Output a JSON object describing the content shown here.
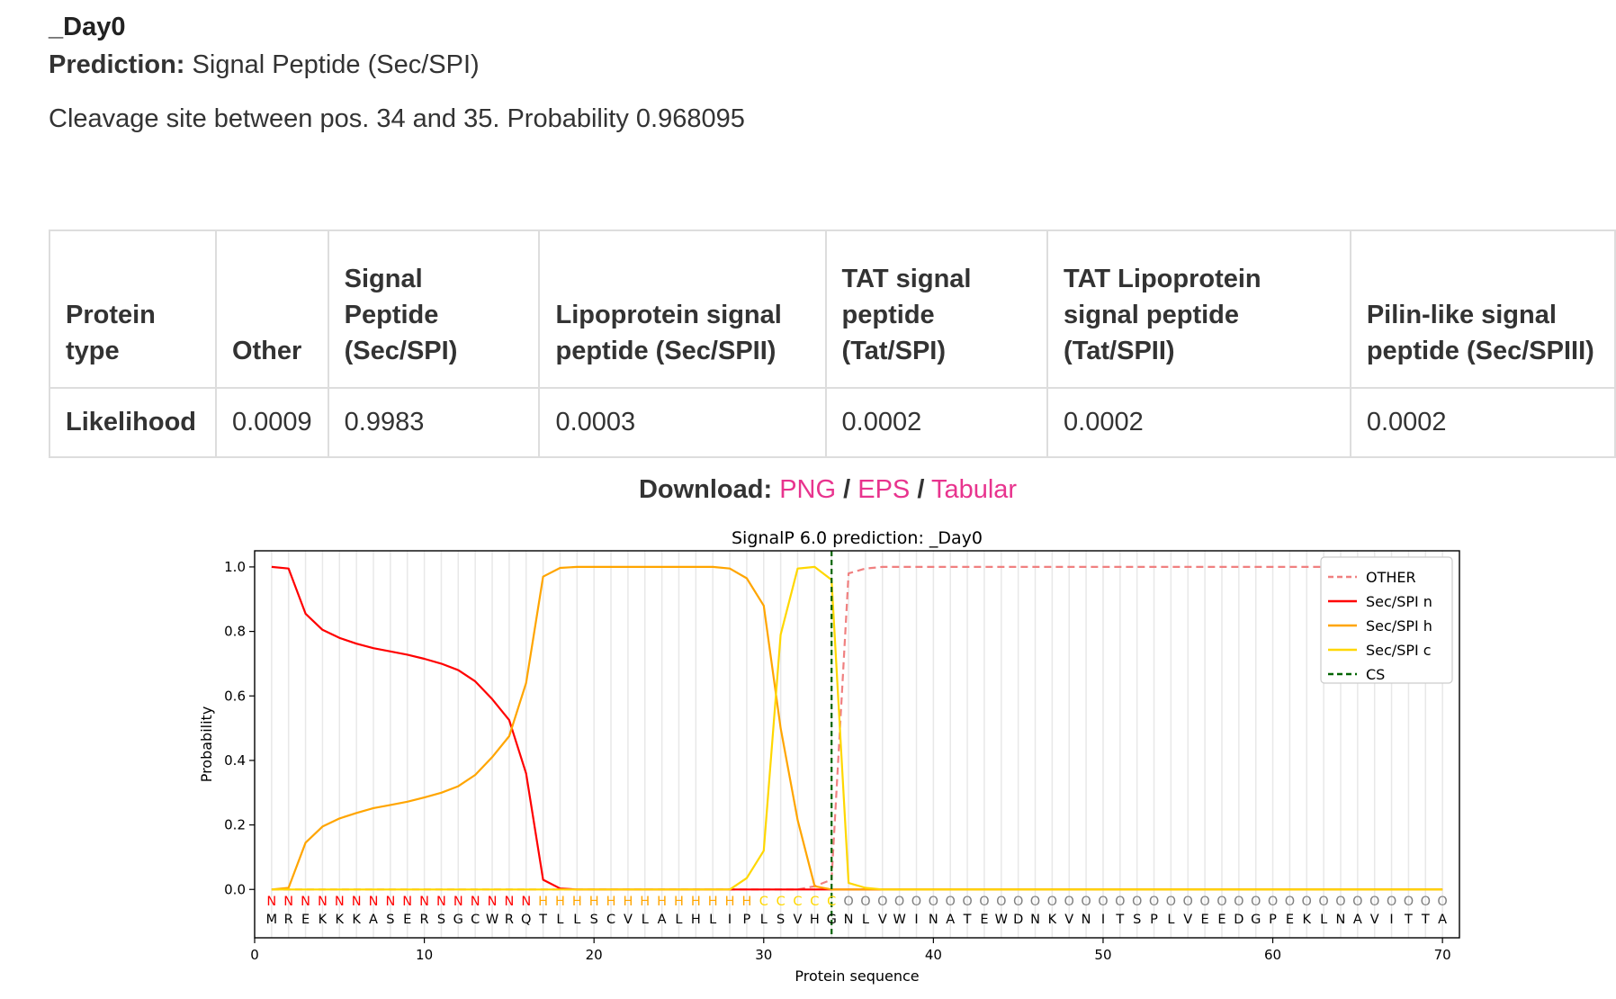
{
  "header": {
    "seq_name": "_Day0",
    "prediction_label": "Prediction:",
    "prediction_value": "Signal Peptide (Sec/SPI)",
    "cleavage_text": "Cleavage site between pos. 34 and 35. Probability 0.968095"
  },
  "table": {
    "headers": [
      "Protein type",
      "Other",
      "Signal Peptide (Sec/SPI)",
      "Lipoprotein signal peptide (Sec/SPII)",
      "TAT signal peptide (Tat/SPI)",
      "TAT Lipoprotein signal peptide (Tat/SPII)",
      "Pilin-like signal peptide (Sec/SPIII)"
    ],
    "row_label": "Likelihood",
    "values": [
      "0.0009",
      "0.9983",
      "0.0003",
      "0.0002",
      "0.0002",
      "0.0002"
    ]
  },
  "download": {
    "label": "Download:",
    "sep": "/",
    "links": [
      "PNG",
      "EPS",
      "Tabular"
    ]
  },
  "chart_data": {
    "type": "line",
    "title": "SignalP 6.0 prediction: _Day0",
    "xlabel": "Protein sequence",
    "ylabel": "Probability",
    "xlim": [
      0,
      71
    ],
    "ylim": [
      -0.15,
      1.05
    ],
    "xticks": [
      0,
      10,
      20,
      30,
      40,
      50,
      60,
      70
    ],
    "yticks": [
      "0.0",
      "0.2",
      "0.4",
      "0.6",
      "0.8",
      "1.0"
    ],
    "legend_position": "top-right",
    "grid": "vertical",
    "x": [
      1,
      2,
      3,
      4,
      5,
      6,
      7,
      8,
      9,
      10,
      11,
      12,
      13,
      14,
      15,
      16,
      17,
      18,
      19,
      20,
      21,
      22,
      23,
      24,
      25,
      26,
      27,
      28,
      29,
      30,
      31,
      32,
      33,
      34,
      35,
      36,
      37,
      38,
      39,
      40,
      41,
      42,
      43,
      44,
      45,
      46,
      47,
      48,
      49,
      50,
      51,
      52,
      53,
      54,
      55,
      56,
      57,
      58,
      59,
      60,
      61,
      62,
      63,
      64,
      65,
      66,
      67,
      68,
      69,
      70
    ],
    "series": [
      {
        "name": "OTHER",
        "color": "#f08080",
        "dash": true,
        "values": [
          0,
          0,
          0,
          0,
          0,
          0,
          0,
          0,
          0,
          0,
          0,
          0,
          0,
          0,
          0,
          0,
          0,
          0,
          0,
          0,
          0,
          0,
          0,
          0,
          0,
          0,
          0,
          0,
          0,
          0,
          0,
          0,
          0.01,
          0.03,
          0.98,
          0.995,
          1,
          1,
          1,
          1,
          1,
          1,
          1,
          1,
          1,
          1,
          1,
          1,
          1,
          1,
          1,
          1,
          1,
          1,
          1,
          1,
          1,
          1,
          1,
          1,
          1,
          1,
          1,
          1,
          1,
          1,
          1,
          1,
          1,
          1
        ]
      },
      {
        "name": "Sec/SPI n",
        "color": "#ff0000",
        "dash": false,
        "values": [
          1.0,
          0.995,
          0.855,
          0.805,
          0.78,
          0.762,
          0.748,
          0.738,
          0.728,
          0.715,
          0.7,
          0.68,
          0.645,
          0.59,
          0.525,
          0.36,
          0.03,
          0.003,
          0,
          0,
          0,
          0,
          0,
          0,
          0,
          0,
          0,
          0,
          0,
          0,
          0,
          0,
          0,
          0,
          0,
          0,
          0,
          0,
          0,
          0,
          0,
          0,
          0,
          0,
          0,
          0,
          0,
          0,
          0,
          0,
          0,
          0,
          0,
          0,
          0,
          0,
          0,
          0,
          0,
          0,
          0,
          0,
          0,
          0,
          0,
          0,
          0,
          0,
          0,
          0
        ]
      },
      {
        "name": "Sec/SPI h",
        "color": "#ffa500",
        "dash": false,
        "values": [
          0,
          0.005,
          0.145,
          0.195,
          0.22,
          0.237,
          0.252,
          0.262,
          0.272,
          0.285,
          0.3,
          0.32,
          0.355,
          0.41,
          0.475,
          0.64,
          0.97,
          0.997,
          1,
          1,
          1,
          1,
          1,
          1,
          1,
          1,
          1,
          0.995,
          0.965,
          0.88,
          0.5,
          0.215,
          0.01,
          0,
          0,
          0,
          0,
          0,
          0,
          0,
          0,
          0,
          0,
          0,
          0,
          0,
          0,
          0,
          0,
          0,
          0,
          0,
          0,
          0,
          0,
          0,
          0,
          0,
          0,
          0,
          0,
          0,
          0,
          0,
          0,
          0,
          0,
          0,
          0,
          0
        ]
      },
      {
        "name": "Sec/SPI c",
        "color": "#ffd700",
        "dash": false,
        "values": [
          0,
          0,
          0,
          0,
          0,
          0,
          0,
          0,
          0,
          0,
          0,
          0,
          0,
          0,
          0,
          0,
          0,
          0,
          0,
          0,
          0,
          0,
          0,
          0,
          0,
          0,
          0,
          0,
          0.035,
          0.12,
          0.79,
          0.995,
          1,
          0.96,
          0.02,
          0.005,
          0,
          0,
          0,
          0,
          0,
          0,
          0,
          0,
          0,
          0,
          0,
          0,
          0,
          0,
          0,
          0,
          0,
          0,
          0,
          0,
          0,
          0,
          0,
          0,
          0,
          0,
          0,
          0,
          0,
          0,
          0,
          0,
          0,
          0
        ]
      },
      {
        "name": "CS",
        "color": "#006400",
        "dash": true,
        "vline_x": 34
      }
    ],
    "region_labels": "NNNNNNNNNNNNNNNNHHHHHHHHHHHHHCCCCCOOOOOOOOOOOOOOOOOOOOOOOOOOOOOOOOOOOO",
    "region_colors": {
      "N": "#ff0000",
      "H": "#ffa500",
      "C": "#ffd700",
      "O": "#808080"
    },
    "sequence": "MREKKKASERSGCWRQTLLSCVLALHLIPLSVHGNLVWINATEWDNKVNITSPLVEEDGPEKLNAVITTA"
  }
}
